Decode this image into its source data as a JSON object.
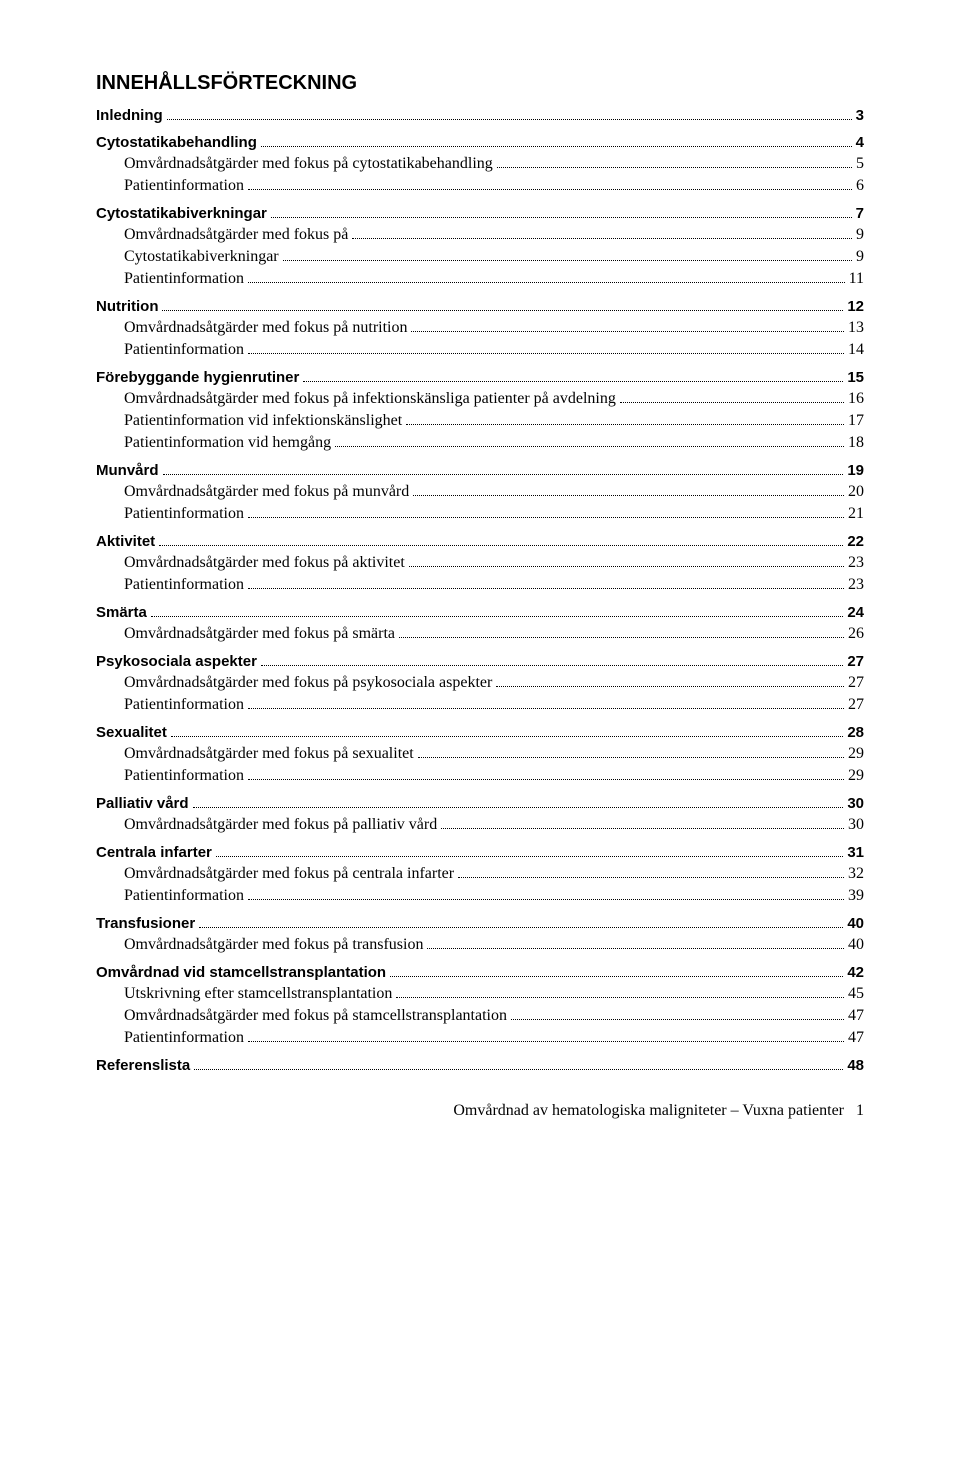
{
  "title": "INNEHÅLLSFÖRTECKNING",
  "footer": {
    "text": "Omvårdnad av hematologiska maligniteter – Vuxna patienter",
    "page": "1"
  },
  "entries": [
    {
      "level": "section",
      "label": "Inledning",
      "page": "3"
    },
    {
      "level": "section",
      "label": "Cytostatikabehandling",
      "page": "4"
    },
    {
      "level": "sub",
      "label": "Omvårdnadsåtgärder med fokus på cytostatikabehandling",
      "page": "5"
    },
    {
      "level": "sub",
      "label": "Patientinformation",
      "page": "6"
    },
    {
      "level": "section",
      "label": "Cytostatikabiverkningar",
      "page": "7"
    },
    {
      "level": "sub",
      "label": "Omvårdnadsåtgärder med fokus på",
      "page": "9"
    },
    {
      "level": "sub",
      "label": "Cytostatikabiverkningar",
      "page": "9"
    },
    {
      "level": "sub",
      "label": "Patientinformation",
      "page": "11"
    },
    {
      "level": "section",
      "label": "Nutrition",
      "page": "12"
    },
    {
      "level": "sub",
      "label": "Omvårdnadsåtgärder med fokus på nutrition",
      "page": "13"
    },
    {
      "level": "sub",
      "label": "Patientinformation",
      "page": "14"
    },
    {
      "level": "section",
      "label": "Förebyggande hygienrutiner",
      "page": "15"
    },
    {
      "level": "sub",
      "label": "Omvårdnadsåtgärder med fokus på infektionskänsliga patienter på avdelning",
      "page": "16"
    },
    {
      "level": "sub",
      "label": "Patientinformation vid infektionskänslighet",
      "page": "17"
    },
    {
      "level": "sub",
      "label": "Patientinformation vid hemgång",
      "page": "18"
    },
    {
      "level": "section",
      "label": "Munvård",
      "page": "19"
    },
    {
      "level": "sub",
      "label": "Omvårdnadsåtgärder med fokus på munvård",
      "page": "20"
    },
    {
      "level": "sub",
      "label": "Patientinformation",
      "page": "21"
    },
    {
      "level": "section",
      "label": "Aktivitet",
      "page": "22"
    },
    {
      "level": "sub",
      "label": "Omvårdnadsåtgärder med fokus på aktivitet",
      "page": "23"
    },
    {
      "level": "sub",
      "label": "Patientinformation",
      "page": "23"
    },
    {
      "level": "section",
      "label": "Smärta",
      "page": "24"
    },
    {
      "level": "sub",
      "label": "Omvårdnadsåtgärder med fokus på smärta",
      "page": "26"
    },
    {
      "level": "section",
      "label": "Psykosociala aspekter",
      "page": "27"
    },
    {
      "level": "sub",
      "label": "Omvårdnadsåtgärder med fokus på psykosociala aspekter",
      "page": "27"
    },
    {
      "level": "sub",
      "label": "Patientinformation",
      "page": "27"
    },
    {
      "level": "section",
      "label": "Sexualitet",
      "page": "28"
    },
    {
      "level": "sub",
      "label": "Omvårdnadsåtgärder med fokus på sexualitet",
      "page": "29"
    },
    {
      "level": "sub",
      "label": "Patientinformation",
      "page": "29"
    },
    {
      "level": "section",
      "label": "Palliativ vård",
      "page": "30"
    },
    {
      "level": "sub",
      "label": "Omvårdnadsåtgärder med fokus på palliativ vård",
      "page": "30"
    },
    {
      "level": "section",
      "label": "Centrala infarter",
      "page": "31"
    },
    {
      "level": "sub",
      "label": "Omvårdnadsåtgärder med fokus på centrala infarter",
      "page": "32"
    },
    {
      "level": "sub",
      "label": "Patientinformation",
      "page": "39"
    },
    {
      "level": "section",
      "label": "Transfusioner",
      "page": "40"
    },
    {
      "level": "sub",
      "label": "Omvårdnadsåtgärder med fokus på transfusion",
      "page": "40"
    },
    {
      "level": "section",
      "label": "Omvårdnad vid stamcellstransplantation",
      "page": "42"
    },
    {
      "level": "sub",
      "label": "Utskrivning efter stamcellstransplantation",
      "page": "45"
    },
    {
      "level": "sub",
      "label": "Omvårdnadsåtgärder med fokus på stamcellstransplantation",
      "page": "47"
    },
    {
      "level": "sub",
      "label": "Patientinformation",
      "page": "47"
    },
    {
      "level": "section",
      "label": "Referenslista",
      "page": "48"
    }
  ]
}
